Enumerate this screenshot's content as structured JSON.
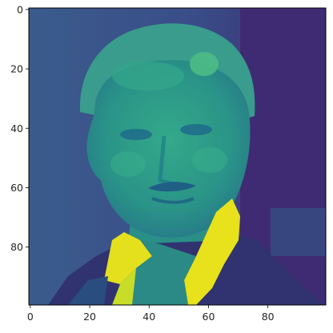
{
  "chart_data": {
    "type": "heatmap",
    "title": "",
    "xlabel": "",
    "ylabel": "",
    "colormap": "viridis",
    "image_shape": [
      100,
      100
    ],
    "xlim": [
      -0.5,
      99.5
    ],
    "ylim": [
      99.5,
      -0.5
    ],
    "x_ticks": [
      0,
      20,
      40,
      60,
      80
    ],
    "y_ticks": [
      0,
      20,
      40,
      60,
      80
    ],
    "x_tick_labels": [
      "0",
      "20",
      "40",
      "60",
      "80"
    ],
    "y_tick_labels": [
      "0",
      "20",
      "40",
      "60",
      "80"
    ],
    "colors": {
      "background": "#3b528b",
      "dark_background": "#3e2a73",
      "face": "#2c9b8b",
      "hair": "#3f9a8a",
      "jacket": "#31316f",
      "collar": "#e6e11d",
      "shirt_dark": "#2c8a86"
    }
  }
}
